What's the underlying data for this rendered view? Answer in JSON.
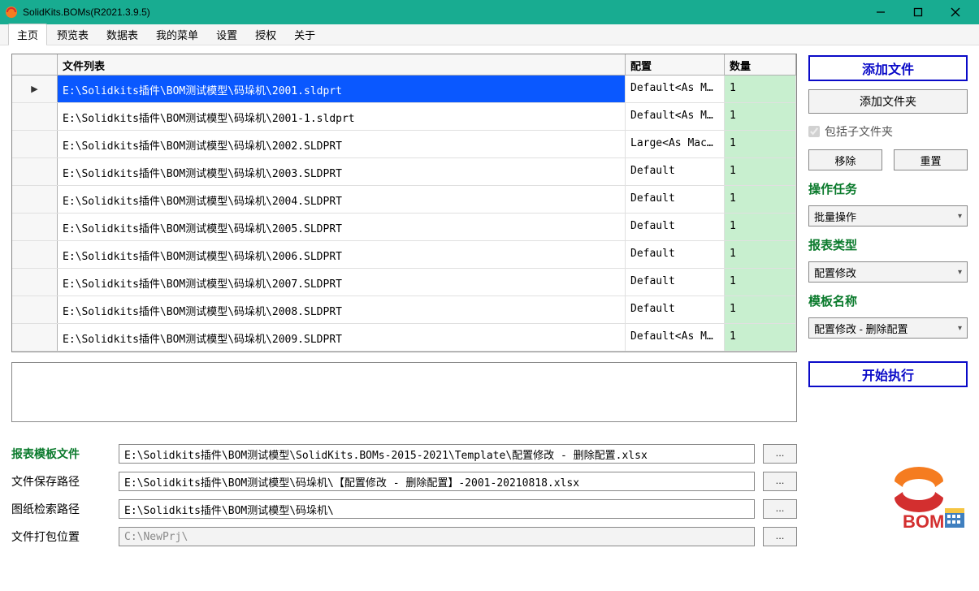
{
  "window": {
    "title": "SolidKits.BOMs(R2021.3.9.5)",
    "titlebar_bg": "#18ac91"
  },
  "menu": {
    "items": [
      "主页",
      "预览表",
      "数据表",
      "我的菜单",
      "设置",
      "授权",
      "关于"
    ],
    "active_index": 0
  },
  "grid": {
    "columns": {
      "file": "文件列表",
      "config": "配置",
      "qty": "数量"
    },
    "rows": [
      {
        "file": "E:\\Solidkits插件\\BOM测试模型\\码垛机\\2001.sldprt",
        "config": "Default<As M..",
        "qty": "1",
        "selected": true
      },
      {
        "file": "E:\\Solidkits插件\\BOM测试模型\\码垛机\\2001-1.sldprt",
        "config": "Default<As M..",
        "qty": "1"
      },
      {
        "file": "E:\\Solidkits插件\\BOM测试模型\\码垛机\\2002.SLDPRT",
        "config": "Large<As Mac...",
        "qty": "1"
      },
      {
        "file": "E:\\Solidkits插件\\BOM测试模型\\码垛机\\2003.SLDPRT",
        "config": "Default",
        "qty": "1"
      },
      {
        "file": "E:\\Solidkits插件\\BOM测试模型\\码垛机\\2004.SLDPRT",
        "config": "Default",
        "qty": "1"
      },
      {
        "file": "E:\\Solidkits插件\\BOM测试模型\\码垛机\\2005.SLDPRT",
        "config": "Default",
        "qty": "1"
      },
      {
        "file": "E:\\Solidkits插件\\BOM测试模型\\码垛机\\2006.SLDPRT",
        "config": "Default",
        "qty": "1"
      },
      {
        "file": "E:\\Solidkits插件\\BOM测试模型\\码垛机\\2007.SLDPRT",
        "config": "Default",
        "qty": "1"
      },
      {
        "file": "E:\\Solidkits插件\\BOM测试模型\\码垛机\\2008.SLDPRT",
        "config": "Default",
        "qty": "1"
      },
      {
        "file": "E:\\Solidkits插件\\BOM测试模型\\码垛机\\2009.SLDPRT",
        "config": "Default<As M..",
        "qty": "1"
      }
    ]
  },
  "rightpanel": {
    "add_file": "添加文件",
    "add_folder": "添加文件夹",
    "include_sub": "包括子文件夹",
    "include_sub_checked": true,
    "remove": "移除",
    "reset": "重置",
    "task_label": "操作任务",
    "task_value": "批量操作",
    "report_type_label": "报表类型",
    "report_type_value": "配置修改",
    "template_label": "模板名称",
    "template_value": "配置修改 - 删除配置",
    "start": "开始执行"
  },
  "paths": {
    "template_label": "报表模板文件",
    "template_value": "E:\\Solidkits插件\\BOM测试模型\\SolidKits.BOMs-2015-2021\\Template\\配置修改 - 删除配置.xlsx",
    "save_label": "文件保存路径",
    "save_value": "E:\\Solidkits插件\\BOM测试模型\\码垛机\\【配置修改 - 删除配置】-2001-20210818.xlsx",
    "drawing_label": "图纸检索路径",
    "drawing_value": "E:\\Solidkits插件\\BOM测试模型\\码垛机\\",
    "pack_label": "文件打包位置",
    "pack_value": "C:\\NewPrj\\",
    "browse": "..."
  },
  "colors": {
    "accent_blue": "#0a0ac8",
    "accent_green_text": "#0a7a2c",
    "qty_bg": "#c8efcf",
    "select_bg": "#0a58ff"
  }
}
